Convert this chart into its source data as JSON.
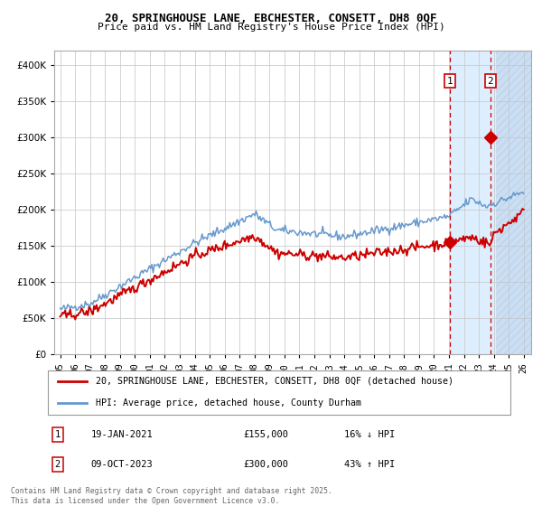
{
  "title_line1": "20, SPRINGHOUSE LANE, EBCHESTER, CONSETT, DH8 0QF",
  "title_line2": "Price paid vs. HM Land Registry's House Price Index (HPI)",
  "legend_label_red": "20, SPRINGHOUSE LANE, EBCHESTER, CONSETT, DH8 0QF (detached house)",
  "legend_label_blue": "HPI: Average price, detached house, County Durham",
  "annotation1_label": "1",
  "annotation1_date": "19-JAN-2021",
  "annotation1_price": "£155,000",
  "annotation1_hpi": "16% ↓ HPI",
  "annotation2_label": "2",
  "annotation2_date": "09-OCT-2023",
  "annotation2_price": "£300,000",
  "annotation2_hpi": "43% ↑ HPI",
  "footer": "Contains HM Land Registry data © Crown copyright and database right 2025.\nThis data is licensed under the Open Government Licence v3.0.",
  "red_color": "#cc0000",
  "blue_color": "#6699cc",
  "background_color": "#ffffff",
  "grid_color": "#cccccc",
  "highlight_color": "#ddeeff",
  "ylim_min": 0,
  "ylim_max": 420000,
  "transaction1_year": 2021.05,
  "transaction2_year": 2023.78,
  "transaction1_value": 155000,
  "transaction2_value": 300000,
  "xmin": 1994.6,
  "xmax": 2026.5
}
